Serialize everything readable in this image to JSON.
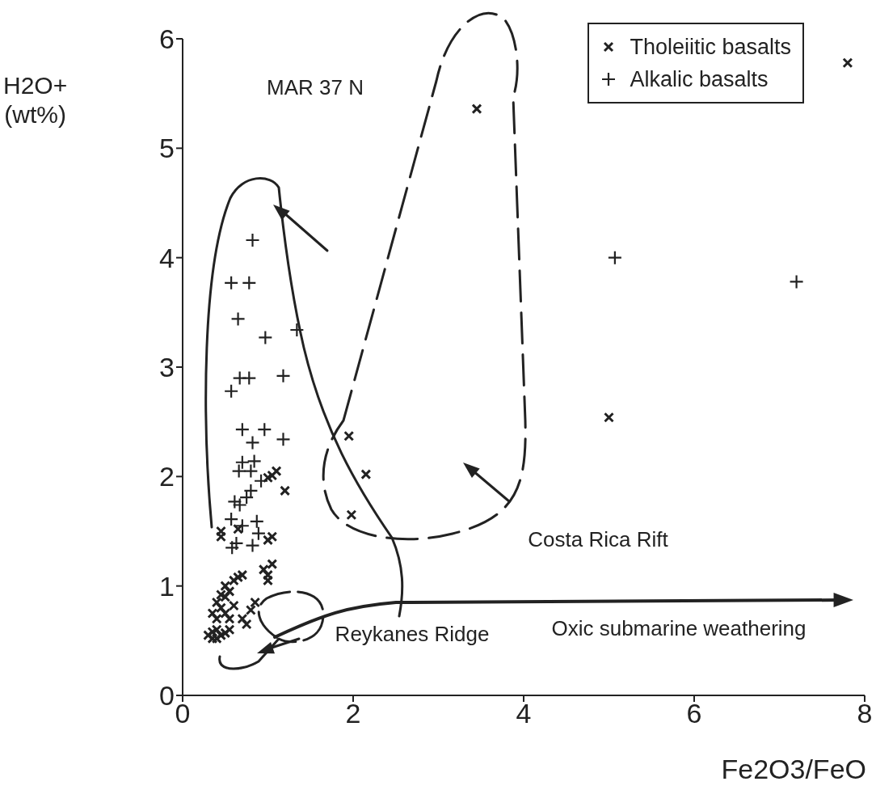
{
  "chart_data": {
    "type": "scatter",
    "xlabel": "Fe2O3/FeO",
    "ylabel": "H2O+\n(wt%)",
    "xlim": [
      0,
      8
    ],
    "xticks": [
      0,
      2,
      4,
      6,
      8
    ],
    "ylim": [
      0,
      6
    ],
    "yticks": [
      0,
      1,
      2,
      3,
      4,
      5,
      6
    ],
    "grid": false,
    "legend": "top right",
    "series": [
      {
        "name": "Tholeiitic basalts",
        "color": "#222222",
        "marker": "cross",
        "x": [
          3.45,
          7.8,
          5.0,
          1.95,
          2.15,
          1.98,
          1.2,
          1.0,
          1.05,
          1.1,
          0.45,
          0.45,
          0.65,
          1.0,
          1.05,
          1.0,
          1.05,
          1.0,
          0.95,
          0.85,
          0.8,
          0.6,
          0.65,
          0.7,
          0.55,
          0.5,
          0.45,
          0.4,
          0.45,
          0.5,
          0.55,
          0.4,
          0.35,
          0.7,
          0.75,
          0.3,
          0.35,
          0.4,
          0.45,
          0.5,
          0.55,
          0.4,
          0.35,
          0.6,
          0.5
        ],
        "values": [
          5.36,
          5.78,
          2.54,
          2.37,
          2.02,
          1.65,
          1.87,
          1.99,
          2.01,
          2.05,
          1.5,
          1.45,
          1.52,
          1.42,
          1.45,
          1.1,
          1.2,
          1.05,
          1.15,
          0.85,
          0.78,
          1.05,
          1.08,
          1.1,
          0.95,
          0.9,
          0.92,
          0.85,
          0.8,
          0.75,
          0.7,
          0.7,
          0.75,
          0.7,
          0.65,
          0.55,
          0.58,
          0.6,
          0.55,
          0.57,
          0.6,
          0.52,
          0.52,
          0.82,
          1.0
        ]
      },
      {
        "name": "Alkalic basalts",
        "color": "#222222",
        "marker": "plus",
        "x": [
          0.82,
          0.57,
          0.78,
          0.65,
          0.97,
          1.34,
          0.67,
          0.78,
          1.18,
          0.57,
          0.7,
          0.96,
          0.82,
          1.18,
          0.7,
          0.84,
          0.66,
          0.8,
          0.61,
          0.75,
          0.8,
          0.67,
          0.92,
          0.57,
          0.7,
          0.87,
          0.89,
          0.82,
          0.63,
          0.58,
          5.07,
          7.2
        ],
        "values": [
          4.16,
          3.77,
          3.77,
          3.44,
          3.27,
          3.34,
          2.9,
          2.9,
          2.92,
          2.78,
          2.43,
          2.43,
          2.31,
          2.34,
          2.13,
          2.14,
          2.05,
          2.05,
          1.77,
          1.81,
          1.87,
          1.74,
          1.96,
          1.61,
          1.55,
          1.59,
          1.48,
          1.37,
          1.39,
          1.35,
          4.0,
          3.78
        ]
      }
    ],
    "annotations": [
      "MAR 37 N",
      "Costa Rica Rift",
      "Oxic submarine weathering",
      "Reykanes Ridge"
    ]
  }
}
